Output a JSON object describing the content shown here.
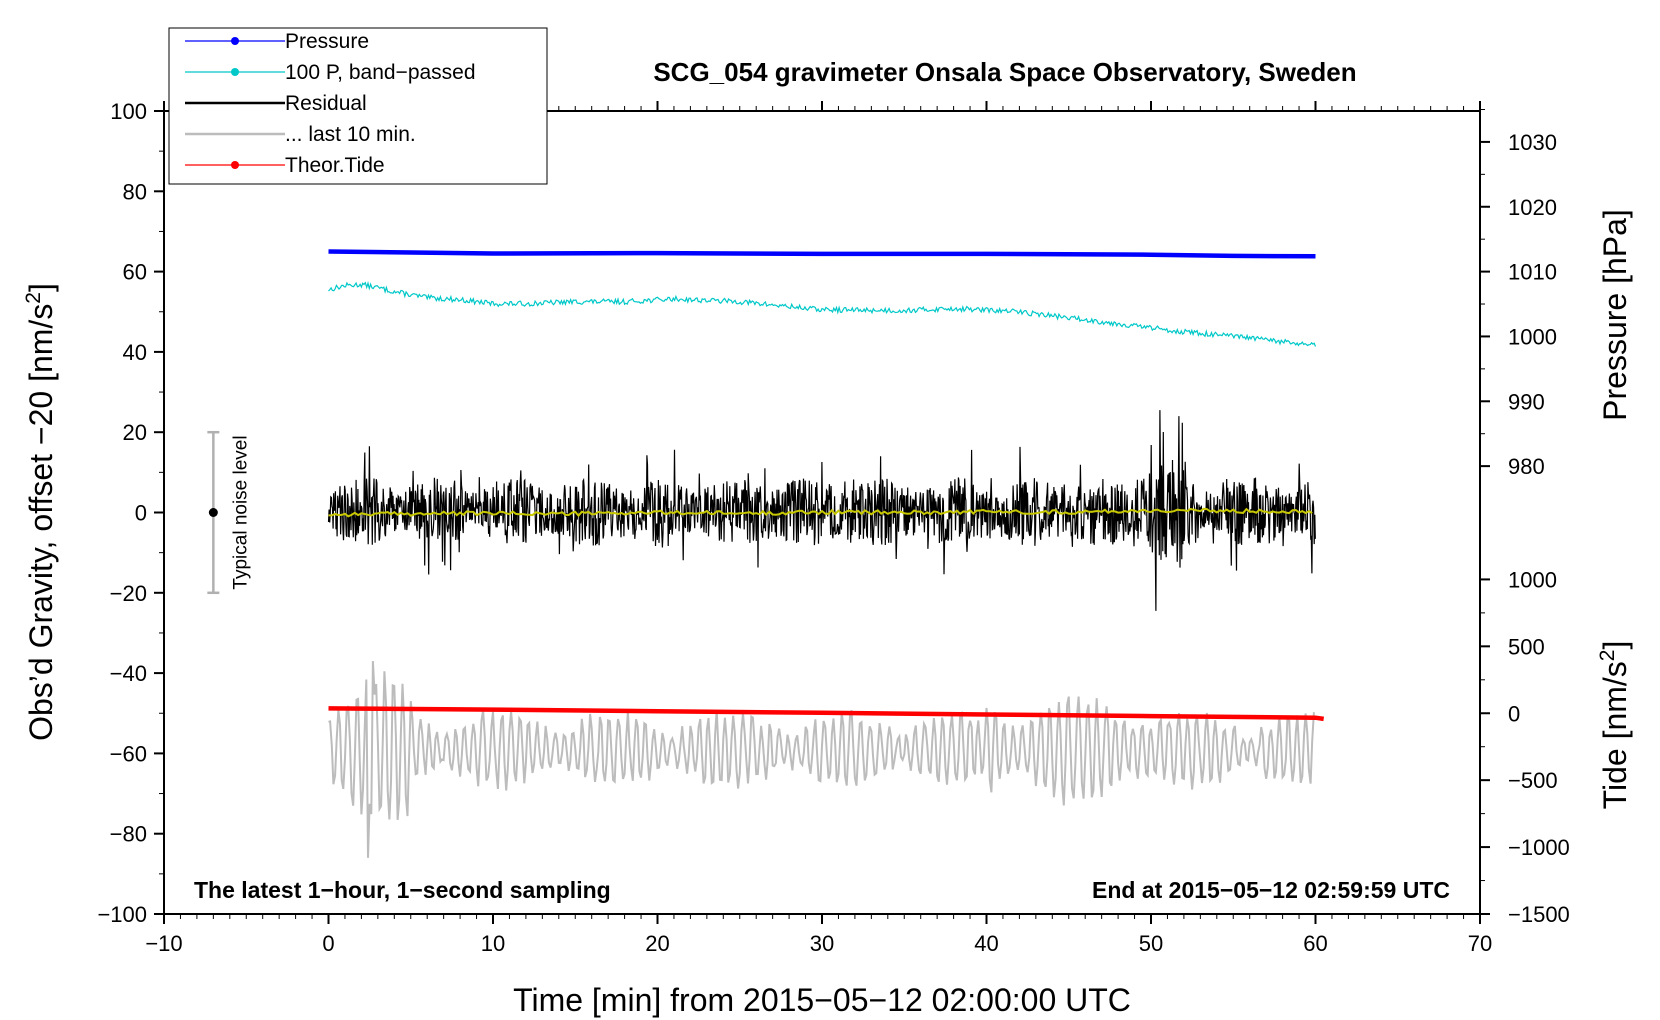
{
  "chart_data": {
    "type": "line",
    "title": "SCG_054 gravimeter Onsala Space Observatory, Sweden",
    "xlabel": "Time [min] from 2015−05−12 02:00:00 UTC",
    "ylabel": "Obs’d Gravity, offset −20 [nm/s",
    "ylabel_sup": "2",
    "ylabel_close": "]",
    "ylabel_right_pressure": "Pressure [hPa]",
    "ylabel_right_tide": "Tide [nm/s",
    "ylabel_right_tide_sup": "2",
    "ylabel_right_tide_close": "]",
    "xlim": [
      -10,
      70
    ],
    "ylim": [
      -100,
      100
    ],
    "x_ticks": [
      "−10",
      "0",
      "10",
      "20",
      "30",
      "40",
      "50",
      "60",
      "70"
    ],
    "x_tick_values": [
      -10,
      0,
      10,
      20,
      30,
      40,
      50,
      60,
      70
    ],
    "y_ticks": [
      "100",
      "80",
      "60",
      "40",
      "20",
      "0",
      "−20",
      "−40",
      "−60",
      "−80",
      "−100"
    ],
    "y_tick_values": [
      100,
      80,
      60,
      40,
      20,
      0,
      -20,
      -40,
      -60,
      -80,
      -100
    ],
    "pressure_axis": {
      "ticks": [
        "1030",
        "1020",
        "1010",
        "1000",
        "990",
        "980"
      ],
      "values": [
        1030,
        1020,
        1010,
        1000,
        990,
        980
      ],
      "map_to_left": {
        "p0": 1010,
        "y0": 60,
        "p1": 1030,
        "y1": 92.3
      }
    },
    "tide_axis": {
      "ticks": [
        "1000",
        "500",
        "0",
        "−500",
        "−1000",
        "−1500"
      ],
      "values": [
        1000,
        500,
        0,
        -500,
        -1000,
        -1500
      ],
      "map_to_left": {
        "t0": 0,
        "y0": -50,
        "t1": -1500,
        "y1": -100
      }
    },
    "series": [
      {
        "name": "Pressure",
        "color": "#0000ff",
        "kind": "line",
        "x": [
          0,
          10,
          20,
          30,
          40,
          50,
          55,
          60
        ],
        "y": [
          65,
          64.5,
          64.6,
          64.4,
          64.4,
          64.2,
          63.9,
          63.8
        ]
      },
      {
        "name": "100 P, band−passed",
        "color": "#00c8c8",
        "kind": "line",
        "x": [
          0,
          1,
          2,
          3,
          4,
          6,
          8,
          10,
          12,
          15,
          18,
          21,
          25,
          30,
          35,
          38,
          42,
          45,
          48,
          52,
          56,
          60
        ],
        "y": [
          55.5,
          56.5,
          56.8,
          56,
          55,
          53.5,
          53,
          52,
          52,
          52.5,
          52.5,
          53.2,
          52.5,
          50.5,
          50.3,
          50.8,
          50,
          48.5,
          47,
          45,
          43.5,
          41.5
        ]
      },
      {
        "name": "Residual",
        "color": "#000000",
        "kind": "noise",
        "x_range": [
          0,
          60
        ],
        "amplitude": 8,
        "peak_max": 25.5,
        "peak_min": -24.5
      },
      {
        "name": "... last 10 min.",
        "color": "#bcbcbc",
        "kind": "noise",
        "x_range": [
          0,
          60
        ],
        "center": -59,
        "amplitude": 9,
        "peak_max": -37,
        "peak_min": -86
      },
      {
        "name": "Theor.Tide",
        "color": "#ff0000",
        "kind": "line",
        "x": [
          0,
          10,
          20,
          30,
          40,
          50,
          60,
          60.5
        ],
        "y": [
          -48.8,
          -49.1,
          -49.5,
          -49.9,
          -50.3,
          -50.7,
          -51.1,
          -51.4
        ]
      },
      {
        "name": "Residual (smoothed)",
        "color": "#c8c800",
        "kind": "line",
        "in_legend": false,
        "x": [
          0,
          5,
          10,
          15,
          20,
          25,
          30,
          35,
          40,
          45,
          50,
          55,
          60
        ],
        "y": [
          -0.5,
          -0.3,
          -0.2,
          -0.3,
          0,
          -0.2,
          0.1,
          0,
          0.2,
          0.1,
          0.5,
          0.4,
          0.3
        ]
      }
    ],
    "noise_bar": {
      "x": -7,
      "y_low": -20,
      "y_high": 20,
      "y_mid": 0,
      "label": "Typical noise level"
    },
    "annotations": {
      "bottom_left": "The latest 1−hour, 1−second sampling",
      "bottom_right": "End at 2015−05−12 02:59:59 UTC"
    },
    "legend": {
      "placement": "top-left",
      "entries": [
        "Pressure",
        "100 P, band−passed",
        "Residual",
        "... last 10 min.",
        "Theor.Tide"
      ]
    }
  }
}
